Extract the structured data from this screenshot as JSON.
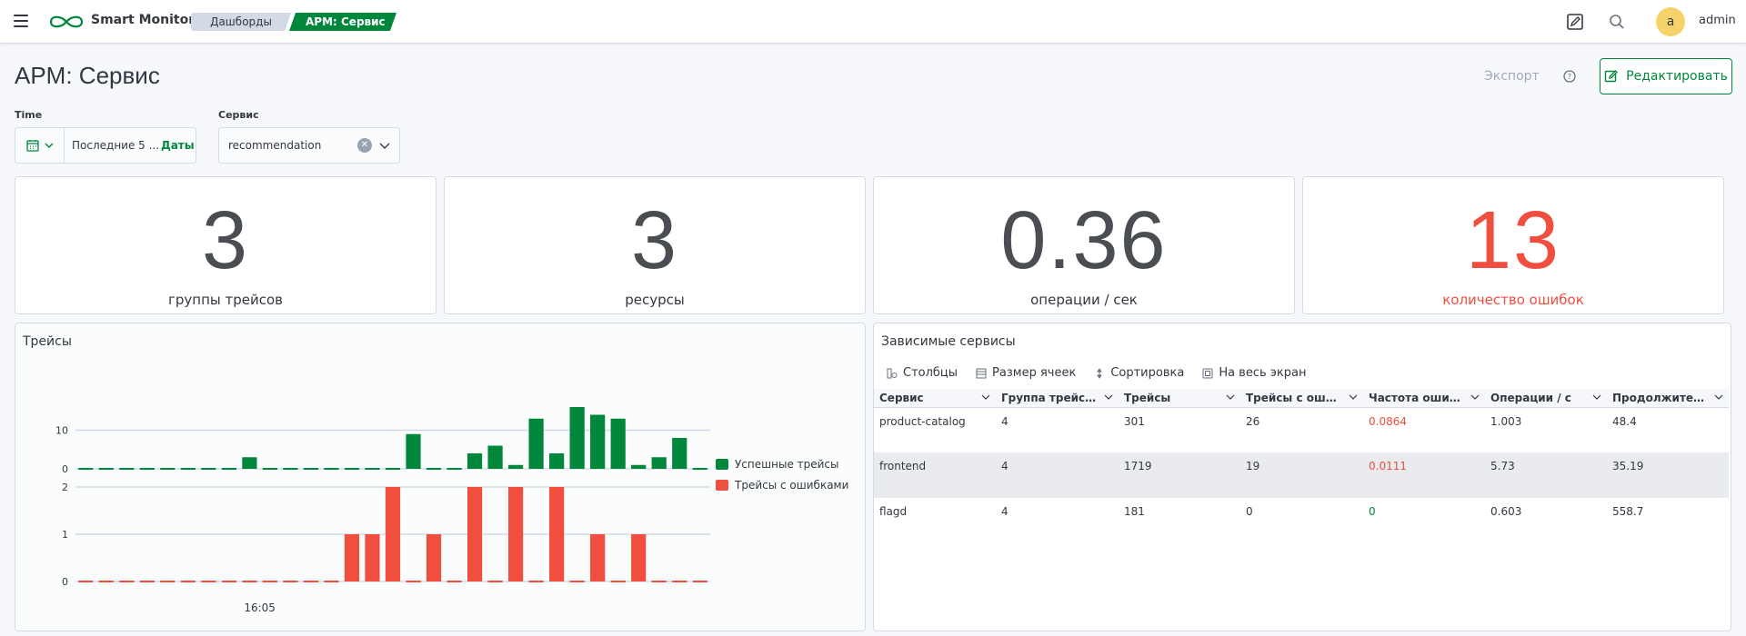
{
  "header": {
    "app_name": "Smart Monitor",
    "breadcrumbs": [
      "Дашборды",
      "APM: Сервис"
    ],
    "user_initial": "a",
    "username": "admin"
  },
  "page": {
    "title": "APM: Сервис",
    "export_label": "Экспорт",
    "edit_label": "Редактировать"
  },
  "filters": {
    "time_label": "Time",
    "time_value": "Последние 5 ...",
    "dates_link": "Даты",
    "service_label": "Сервис",
    "service_value": "recommendation"
  },
  "metrics": [
    {
      "value": "3",
      "label": "группы трейсов"
    },
    {
      "value": "3",
      "label": "ресурсы"
    },
    {
      "value": "0.36",
      "label": "операции / сек"
    },
    {
      "value": "13",
      "label": "количество ошибок"
    }
  ],
  "colors": {
    "accent": "#00873c",
    "success": "#00873c",
    "error": "#f04e3e"
  },
  "traces_panel": {
    "title": "Трейсы"
  },
  "chart_data": {
    "type": "bar",
    "categories_count": 31,
    "x_tick_label": "16:05",
    "series": [
      {
        "name": "Успешные трейсы",
        "color": "#00873c",
        "ylim": [
          0,
          16
        ],
        "yticks": [
          "0",
          "10"
        ],
        "values": [
          0,
          0,
          0,
          0,
          0,
          0,
          0,
          0,
          3,
          0,
          0,
          0,
          0,
          0,
          0,
          0,
          9,
          0,
          0,
          4,
          6,
          1,
          13,
          4,
          16,
          14,
          13,
          1,
          3,
          8,
          0
        ]
      },
      {
        "name": "Трейсы с ошибками",
        "color": "#f04e3e",
        "ylim": [
          0,
          2
        ],
        "yticks": [
          "0",
          "1",
          "2"
        ],
        "values": [
          0,
          0,
          0,
          0,
          0,
          0,
          0,
          0,
          0,
          0,
          0,
          0,
          0,
          1,
          1,
          2,
          0,
          1,
          0,
          2,
          0,
          2,
          0,
          2,
          0,
          1,
          0,
          1,
          0,
          0,
          0
        ]
      }
    ]
  },
  "deps_panel": {
    "title": "Зависимые сервисы",
    "toolbar": [
      "Столбцы",
      "Размер ячеек",
      "Сортировка",
      "На весь экран"
    ],
    "columns": [
      "Сервис",
      "Группа трейсов",
      "Трейсы",
      "Трейсы с ошибк...",
      "Частота ошибок",
      "Операции / с",
      "Продолжительн..."
    ],
    "rows": [
      [
        "product-catalog",
        "4",
        "301",
        "26",
        "0.0864",
        "1.003",
        "48.4"
      ],
      [
        "frontend",
        "4",
        "1719",
        "19",
        "0.0111",
        "5.73",
        "35.19"
      ],
      [
        "flagd",
        "4",
        "181",
        "0",
        "0",
        "0.603",
        "558.7"
      ]
    ]
  }
}
